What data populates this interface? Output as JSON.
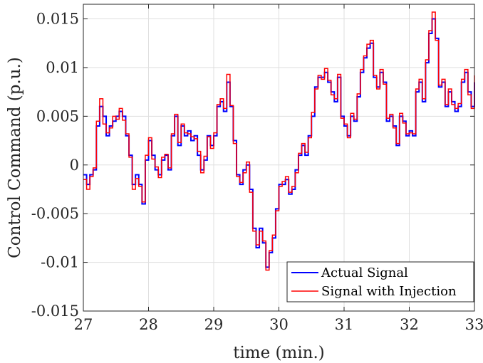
{
  "chart_data": {
    "type": "line",
    "title": "",
    "xlabel": "time (min.)",
    "ylabel": "Control Command (p.u.)",
    "xlim": [
      27,
      33
    ],
    "ylim": [
      -0.015,
      0.0165
    ],
    "x_ticks": [
      27,
      28,
      29,
      30,
      31,
      32,
      33
    ],
    "x_tick_labels": [
      "27",
      "28",
      "29",
      "30",
      "31",
      "32",
      "33"
    ],
    "y_ticks": [
      -0.015,
      -0.01,
      -0.005,
      0,
      0.005,
      0.01,
      0.015
    ],
    "y_tick_labels": [
      "-0.015",
      "-0.01",
      "-0.005",
      "0",
      "0.005",
      "0.01",
      "0.015"
    ],
    "grid": true,
    "legend_position": "bottom-right",
    "step_plot": true,
    "series": [
      {
        "name": "Actual Signal",
        "color": "#0000ff",
        "x": [
          27.0,
          27.05,
          27.1,
          27.15,
          27.2,
          27.25,
          27.3,
          27.35,
          27.4,
          27.45,
          27.5,
          27.55,
          27.6,
          27.65,
          27.7,
          27.75,
          27.8,
          27.85,
          27.9,
          27.95,
          28.0,
          28.05,
          28.1,
          28.15,
          28.2,
          28.25,
          28.3,
          28.35,
          28.4,
          28.45,
          28.5,
          28.55,
          28.6,
          28.65,
          28.7,
          28.75,
          28.8,
          28.85,
          28.9,
          28.95,
          29.0,
          29.05,
          29.1,
          29.15,
          29.2,
          29.25,
          29.3,
          29.35,
          29.4,
          29.45,
          29.5,
          29.55,
          29.6,
          29.65,
          29.7,
          29.75,
          29.8,
          29.85,
          29.9,
          29.95,
          30.0,
          30.05,
          30.1,
          30.15,
          30.2,
          30.25,
          30.3,
          30.35,
          30.4,
          30.45,
          30.5,
          30.55,
          30.6,
          30.65,
          30.7,
          30.75,
          30.8,
          30.85,
          30.9,
          30.95,
          31.0,
          31.05,
          31.1,
          31.15,
          31.2,
          31.25,
          31.3,
          31.35,
          31.4,
          31.45,
          31.5,
          31.55,
          31.6,
          31.65,
          31.7,
          31.75,
          31.8,
          31.85,
          31.9,
          31.95,
          32.0,
          32.05,
          32.1,
          32.15,
          32.2,
          32.25,
          32.3,
          32.35,
          32.4,
          32.45,
          32.5,
          32.55,
          32.6,
          32.65,
          32.7,
          32.75,
          32.8,
          32.85,
          32.9,
          32.95,
          33.0
        ],
        "values": [
          -0.001,
          -0.002,
          -0.001,
          -0.0005,
          0.004,
          0.006,
          0.005,
          0.003,
          0.004,
          0.0045,
          0.005,
          0.0055,
          0.005,
          0.003,
          0.001,
          -0.002,
          -0.001,
          -0.002,
          -0.004,
          0.0005,
          0.0025,
          0.001,
          -0.0005,
          -0.001,
          0.0005,
          0.001,
          -0.0005,
          0.003,
          0.005,
          0.002,
          0.004,
          0.003,
          0.0035,
          0.0025,
          0.003,
          0.001,
          -0.0005,
          0.0005,
          0.003,
          0.002,
          0.003,
          0.006,
          0.0065,
          0.0055,
          0.0085,
          0.006,
          0.0025,
          -0.001,
          -0.002,
          -0.0005,
          0.0,
          -0.0025,
          -0.0065,
          -0.0085,
          -0.0065,
          -0.008,
          -0.0105,
          -0.009,
          -0.0075,
          -0.0045,
          -0.002,
          -0.002,
          -0.0015,
          -0.003,
          -0.0025,
          -0.0005,
          0.001,
          0.002,
          0.001,
          0.003,
          0.005,
          0.008,
          0.009,
          0.009,
          0.0095,
          0.0085,
          0.0075,
          0.0065,
          0.009,
          0.005,
          0.004,
          0.003,
          0.005,
          0.0045,
          0.007,
          0.0095,
          0.011,
          0.012,
          0.0125,
          0.009,
          0.008,
          0.0095,
          0.0085,
          0.0045,
          0.005,
          0.004,
          0.002,
          0.005,
          0.0045,
          0.003,
          0.0035,
          0.003,
          0.0075,
          0.0085,
          0.0065,
          0.0105,
          0.0135,
          0.015,
          0.013,
          0.008,
          0.0085,
          0.006,
          0.0075,
          0.0065,
          0.0055,
          0.006,
          0.0085,
          0.0095,
          0.0075,
          0.006,
          0.0085
        ]
      },
      {
        "name": "Signal with Injection",
        "color": "#ff0000",
        "x": [
          27.0,
          27.05,
          27.1,
          27.15,
          27.2,
          27.25,
          27.3,
          27.35,
          27.4,
          27.45,
          27.5,
          27.55,
          27.6,
          27.65,
          27.7,
          27.75,
          27.8,
          27.85,
          27.9,
          27.95,
          28.0,
          28.05,
          28.1,
          28.15,
          28.2,
          28.25,
          28.3,
          28.35,
          28.4,
          28.45,
          28.5,
          28.55,
          28.6,
          28.65,
          28.7,
          28.75,
          28.8,
          28.85,
          28.9,
          28.95,
          29.0,
          29.05,
          29.1,
          29.15,
          29.2,
          29.25,
          29.3,
          29.35,
          29.4,
          29.45,
          29.5,
          29.55,
          29.6,
          29.65,
          29.7,
          29.75,
          29.8,
          29.85,
          29.9,
          29.95,
          30.0,
          30.05,
          30.1,
          30.15,
          30.2,
          30.25,
          30.3,
          30.35,
          30.4,
          30.45,
          30.5,
          30.55,
          30.6,
          30.65,
          30.7,
          30.75,
          30.8,
          30.85,
          30.9,
          30.95,
          31.0,
          31.05,
          31.1,
          31.15,
          31.2,
          31.25,
          31.3,
          31.35,
          31.4,
          31.45,
          31.5,
          31.55,
          31.6,
          31.65,
          31.7,
          31.75,
          31.8,
          31.85,
          31.9,
          31.95,
          32.0,
          32.05,
          32.1,
          32.15,
          32.2,
          32.25,
          32.3,
          32.35,
          32.4,
          32.45,
          32.5,
          32.55,
          32.6,
          32.65,
          32.7,
          32.75,
          32.8,
          32.85,
          32.9,
          32.95,
          33.0
        ],
        "values": [
          -0.0015,
          -0.0025,
          -0.0012,
          -0.0003,
          0.0045,
          0.0068,
          0.0042,
          0.0033,
          0.0038,
          0.005,
          0.0047,
          0.0058,
          0.0046,
          0.0032,
          0.0008,
          -0.0025,
          -0.0014,
          -0.0022,
          -0.0038,
          0.001,
          0.0028,
          0.0006,
          -0.0002,
          -0.0013,
          0.0008,
          0.0011,
          -0.0003,
          0.0032,
          0.0052,
          0.0023,
          0.0042,
          0.0033,
          0.0032,
          0.0029,
          0.0027,
          0.0014,
          -0.0008,
          0.0009,
          0.0029,
          0.0017,
          0.0033,
          0.0062,
          0.0068,
          0.0058,
          0.0093,
          0.0061,
          0.0022,
          -0.0012,
          -0.0018,
          -0.0008,
          0.0003,
          -0.0028,
          -0.0068,
          -0.0082,
          -0.0068,
          -0.0078,
          -0.0108,
          -0.0088,
          -0.0072,
          -0.0047,
          -0.0022,
          -0.0017,
          -0.0012,
          -0.0028,
          -0.0022,
          -0.0008,
          0.0012,
          0.0022,
          0.0013,
          0.0028,
          0.0054,
          0.0078,
          0.0092,
          0.0088,
          0.0099,
          0.0087,
          0.0072,
          0.0068,
          0.0093,
          0.0048,
          0.0042,
          0.0028,
          0.0053,
          0.0047,
          0.0073,
          0.0098,
          0.0112,
          0.0124,
          0.0128,
          0.0092,
          0.0078,
          0.0098,
          0.0083,
          0.0048,
          0.0052,
          0.0038,
          0.0022,
          0.0053,
          0.0043,
          0.0032,
          0.0033,
          0.0032,
          0.0078,
          0.0088,
          0.0068,
          0.0108,
          0.0138,
          0.0157,
          0.0128,
          0.0082,
          0.0088,
          0.0062,
          0.0078,
          0.0062,
          0.0058,
          0.0063,
          0.0088,
          0.0098,
          0.0072,
          0.0058,
          0.0092
        ]
      }
    ]
  },
  "legend": {
    "entries": [
      "Actual Signal",
      "Signal with Injection"
    ]
  }
}
